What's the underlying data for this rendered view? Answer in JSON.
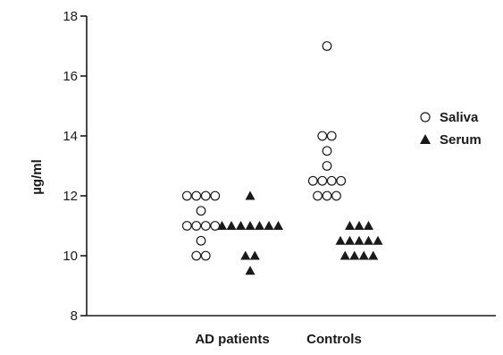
{
  "chart_data": {
    "type": "scatter",
    "title": "",
    "ylabel": "µg/ml",
    "xlabel": "",
    "ylim": [
      8,
      18
    ],
    "yticks": [
      8,
      10,
      12,
      14,
      16,
      18
    ],
    "grid": false,
    "legend_position": "right",
    "categories": [
      "AD patients",
      "Controls"
    ],
    "series": [
      {
        "name": "Saliva",
        "marker": "open-circle",
        "color": "#1a1a1a",
        "points": [
          {
            "category": "AD patients",
            "values": [
              12,
              12,
              12,
              12,
              11.5,
              11,
              11,
              11,
              11,
              10.5,
              10,
              10
            ]
          },
          {
            "category": "Controls",
            "values": [
              17,
              14,
              14,
              13.5,
              13,
              12.5,
              12.5,
              12.5,
              12.5,
              12,
              12,
              12
            ]
          }
        ]
      },
      {
        "name": "Serum",
        "marker": "filled-triangle",
        "color": "#1a1a1a",
        "points": [
          {
            "category": "AD patients",
            "values": [
              12,
              11,
              11,
              11,
              11,
              11,
              11,
              11,
              10,
              10,
              9.5
            ]
          },
          {
            "category": "Controls",
            "values": [
              11,
              11,
              11,
              10.5,
              10.5,
              10.5,
              10.5,
              10.5,
              10,
              10,
              10,
              10
            ]
          }
        ]
      }
    ]
  }
}
